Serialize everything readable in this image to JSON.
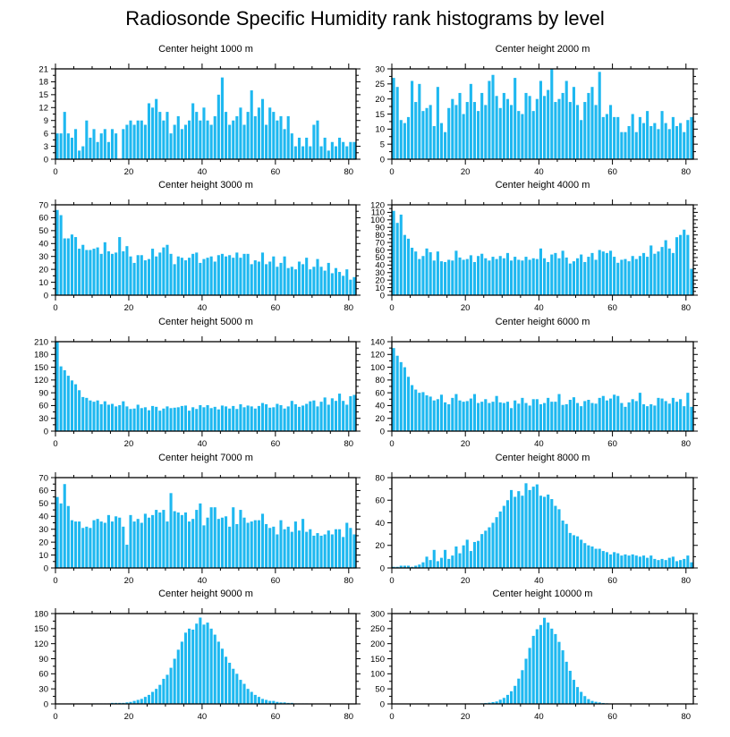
{
  "figure": {
    "title": "Radiosonde Specific Humidity rank histograms by level",
    "bar_color": "#1EB8F0",
    "axis_color": "#000000"
  },
  "chart_data": [
    {
      "type": "bar",
      "title": "Center height 1000 m",
      "xlim": [
        0,
        82
      ],
      "ylim": [
        0,
        21
      ],
      "xticks": [
        0,
        20,
        40,
        60,
        80
      ],
      "yticks": [
        0,
        3,
        6,
        9,
        12,
        15,
        18,
        21
      ],
      "values": [
        6,
        6,
        11,
        6,
        5,
        7,
        2,
        3,
        9,
        5,
        7,
        4,
        6,
        7,
        4,
        7,
        6,
        0,
        7,
        8,
        9,
        8,
        9,
        9,
        8,
        13,
        12,
        14,
        11,
        9,
        11,
        6,
        8,
        10,
        7,
        8,
        9,
        13,
        11,
        9,
        12,
        9,
        8,
        10,
        15,
        19,
        11,
        8,
        9,
        10,
        12,
        8,
        11,
        16,
        10,
        12,
        14,
        8,
        12,
        11,
        9,
        10,
        7,
        10,
        6,
        3,
        5,
        3,
        5,
        3,
        8,
        9,
        3,
        5,
        2,
        4,
        3,
        5,
        4,
        3,
        4,
        4
      ]
    },
    {
      "type": "bar",
      "title": "Center height 2000 m",
      "xlim": [
        0,
        82
      ],
      "ylim": [
        0,
        30
      ],
      "xticks": [
        0,
        20,
        40,
        60,
        80
      ],
      "yticks": [
        0,
        5,
        10,
        15,
        20,
        25,
        30
      ],
      "values": [
        27,
        24,
        13,
        12,
        14,
        26,
        19,
        25,
        16,
        17,
        18,
        11,
        24,
        12,
        9,
        17,
        20,
        18,
        22,
        15,
        19,
        25,
        19,
        16,
        22,
        18,
        26,
        28,
        21,
        17,
        22,
        20,
        18,
        27,
        16,
        15,
        22,
        21,
        16,
        20,
        26,
        21,
        23,
        30,
        19,
        20,
        22,
        26,
        19,
        24,
        18,
        13,
        19,
        22,
        24,
        18,
        29,
        14,
        15,
        18,
        14,
        14,
        9,
        9,
        11,
        15,
        9,
        14,
        12,
        16,
        11,
        12,
        10,
        16,
        12,
        10,
        14,
        11,
        12,
        9,
        13,
        14
      ]
    },
    {
      "type": "bar",
      "title": "Center height 3000 m",
      "xlim": [
        0,
        82
      ],
      "ylim": [
        0,
        70
      ],
      "xticks": [
        0,
        20,
        40,
        60,
        80
      ],
      "yticks": [
        0,
        10,
        20,
        30,
        40,
        50,
        60,
        70
      ],
      "values": [
        66,
        62,
        44,
        44,
        47,
        45,
        36,
        39,
        35,
        35,
        36,
        37,
        32,
        41,
        34,
        32,
        33,
        45,
        34,
        38,
        30,
        25,
        31,
        31,
        27,
        28,
        36,
        30,
        33,
        37,
        39,
        32,
        24,
        30,
        29,
        27,
        29,
        32,
        33,
        25,
        28,
        29,
        30,
        26,
        31,
        32,
        30,
        31,
        29,
        33,
        29,
        32,
        32,
        24,
        27,
        26,
        33,
        24,
        26,
        30,
        22,
        25,
        30,
        21,
        22,
        20,
        26,
        24,
        29,
        20,
        22,
        28,
        22,
        19,
        25,
        17,
        21,
        18,
        15,
        20,
        12,
        14
      ]
    },
    {
      "type": "bar",
      "title": "Center height 4000 m",
      "xlim": [
        0,
        82
      ],
      "ylim": [
        0,
        120
      ],
      "xticks": [
        0,
        20,
        40,
        60,
        80
      ],
      "yticks": [
        0,
        10,
        20,
        30,
        40,
        50,
        60,
        70,
        80,
        90,
        100,
        110,
        120
      ],
      "values": [
        112,
        96,
        107,
        80,
        75,
        63,
        58,
        48,
        52,
        62,
        57,
        46,
        58,
        45,
        44,
        47,
        46,
        59,
        50,
        47,
        48,
        53,
        44,
        52,
        55,
        49,
        46,
        51,
        48,
        52,
        49,
        56,
        46,
        51,
        47,
        46,
        51,
        47,
        49,
        48,
        62,
        49,
        44,
        54,
        56,
        49,
        59,
        50,
        42,
        45,
        49,
        54,
        44,
        51,
        56,
        47,
        60,
        58,
        56,
        59,
        51,
        43,
        47,
        48,
        45,
        52,
        48,
        52,
        56,
        51,
        66,
        55,
        58,
        64,
        73,
        62,
        56,
        77,
        80,
        87,
        80,
        35
      ]
    },
    {
      "type": "bar",
      "title": "Center height 5000 m",
      "xlim": [
        0,
        82
      ],
      "ylim": [
        0,
        210
      ],
      "xticks": [
        0,
        20,
        40,
        60,
        80
      ],
      "yticks": [
        0,
        30,
        60,
        90,
        120,
        150,
        180,
        210
      ],
      "values": [
        210,
        152,
        143,
        130,
        119,
        110,
        96,
        80,
        78,
        72,
        69,
        72,
        63,
        70,
        62,
        64,
        58,
        61,
        70,
        58,
        52,
        53,
        62,
        54,
        56,
        49,
        59,
        57,
        48,
        53,
        58,
        54,
        55,
        56,
        59,
        60,
        48,
        56,
        52,
        61,
        56,
        61,
        54,
        57,
        51,
        60,
        58,
        53,
        59,
        52,
        63,
        56,
        60,
        58,
        53,
        59,
        66,
        63,
        55,
        56,
        64,
        61,
        53,
        58,
        71,
        63,
        57,
        60,
        64,
        70,
        72,
        58,
        69,
        79,
        62,
        77,
        71,
        88,
        71,
        62,
        82,
        85
      ]
    },
    {
      "type": "bar",
      "title": "Center height 6000 m",
      "xlim": [
        0,
        82
      ],
      "ylim": [
        0,
        140
      ],
      "xticks": [
        0,
        20,
        40,
        60,
        80
      ],
      "yticks": [
        0,
        20,
        40,
        60,
        80,
        100,
        120,
        140
      ],
      "values": [
        130,
        118,
        108,
        100,
        85,
        72,
        65,
        60,
        61,
        56,
        54,
        48,
        50,
        57,
        45,
        42,
        52,
        58,
        48,
        46,
        47,
        51,
        58,
        44,
        46,
        50,
        44,
        46,
        55,
        45,
        44,
        46,
        36,
        48,
        43,
        52,
        44,
        40,
        50,
        50,
        42,
        44,
        52,
        46,
        46,
        58,
        41,
        42,
        49,
        53,
        44,
        39,
        47,
        49,
        44,
        43,
        52,
        55,
        48,
        51,
        57,
        55,
        44,
        38,
        45,
        50,
        47,
        60,
        42,
        39,
        42,
        40,
        52,
        51,
        47,
        43,
        52,
        46,
        50,
        39,
        60,
        38
      ]
    },
    {
      "type": "bar",
      "title": "Center height 7000 m",
      "xlim": [
        0,
        82
      ],
      "ylim": [
        0,
        70
      ],
      "xticks": [
        0,
        20,
        40,
        60,
        80
      ],
      "yticks": [
        0,
        10,
        20,
        30,
        40,
        50,
        60,
        70
      ],
      "values": [
        55,
        50,
        65,
        48,
        37,
        36,
        36,
        31,
        32,
        31,
        37,
        38,
        36,
        35,
        41,
        36,
        40,
        39,
        32,
        18,
        41,
        36,
        38,
        35,
        42,
        39,
        41,
        45,
        43,
        45,
        36,
        58,
        44,
        43,
        41,
        43,
        36,
        38,
        45,
        50,
        33,
        39,
        47,
        47,
        38,
        39,
        40,
        32,
        47,
        34,
        45,
        39,
        35,
        36,
        37,
        37,
        42,
        34,
        31,
        32,
        26,
        37,
        30,
        32,
        28,
        36,
        29,
        38,
        28,
        30,
        25,
        27,
        25,
        26,
        29,
        26,
        30,
        30,
        24,
        35,
        31,
        26
      ]
    },
    {
      "type": "bar",
      "title": "Center height 8000 m",
      "xlim": [
        0,
        82
      ],
      "ylim": [
        0,
        80
      ],
      "xticks": [
        0,
        20,
        40,
        60,
        80
      ],
      "yticks": [
        0,
        20,
        40,
        60,
        80
      ],
      "values": [
        1,
        1,
        2,
        2,
        2,
        1,
        2,
        3,
        5,
        10,
        7,
        16,
        6,
        9,
        16,
        8,
        11,
        19,
        13,
        20,
        25,
        15,
        23,
        24,
        30,
        33,
        36,
        40,
        45,
        50,
        55,
        60,
        69,
        63,
        68,
        64,
        75,
        69,
        72,
        74,
        64,
        63,
        65,
        61,
        55,
        52,
        42,
        39,
        31,
        29,
        28,
        25,
        22,
        20,
        19,
        17,
        17,
        15,
        14,
        12,
        14,
        13,
        11,
        12,
        11,
        12,
        11,
        10,
        11,
        9,
        11,
        8,
        7,
        8,
        7,
        9,
        10,
        6,
        7,
        8,
        11,
        5
      ]
    },
    {
      "type": "bar",
      "title": "Center height 9000 m",
      "xlim": [
        0,
        82
      ],
      "ylim": [
        0,
        180
      ],
      "xticks": [
        0,
        20,
        40,
        60,
        80
      ],
      "yticks": [
        0,
        30,
        60,
        90,
        120,
        150,
        180
      ],
      "values": [
        0,
        0,
        0,
        0,
        0,
        0,
        0,
        0,
        0,
        0,
        1,
        1,
        1,
        1,
        1,
        2,
        2,
        2,
        2,
        3,
        4,
        6,
        8,
        10,
        14,
        18,
        24,
        30,
        38,
        50,
        58,
        72,
        90,
        108,
        124,
        142,
        150,
        148,
        160,
        172,
        158,
        162,
        150,
        138,
        124,
        110,
        94,
        82,
        70,
        60,
        48,
        40,
        30,
        24,
        18,
        14,
        10,
        8,
        6,
        6,
        4,
        3,
        3,
        2,
        2,
        1,
        1,
        1,
        1,
        0,
        0,
        0,
        0,
        0,
        0,
        0,
        0,
        0,
        0,
        0,
        0,
        0
      ]
    },
    {
      "type": "bar",
      "title": "Center height 10000 m",
      "xlim": [
        0,
        82
      ],
      "ylim": [
        0,
        300
      ],
      "xticks": [
        0,
        20,
        40,
        60,
        80
      ],
      "yticks": [
        0,
        50,
        100,
        150,
        200,
        250,
        300
      ],
      "values": [
        0,
        0,
        0,
        0,
        0,
        0,
        0,
        0,
        0,
        0,
        0,
        0,
        0,
        0,
        0,
        0,
        0,
        0,
        0,
        0,
        0,
        0,
        1,
        1,
        2,
        3,
        4,
        6,
        8,
        14,
        20,
        30,
        42,
        60,
        84,
        112,
        150,
        186,
        226,
        248,
        262,
        286,
        270,
        250,
        232,
        206,
        178,
        140,
        110,
        80,
        56,
        40,
        26,
        16,
        10,
        7,
        5,
        3,
        2,
        1,
        1,
        1,
        0,
        0,
        0,
        0,
        0,
        0,
        0,
        0,
        0,
        0,
        0,
        0,
        0,
        0,
        0,
        0,
        0,
        0,
        0,
        0
      ]
    }
  ]
}
